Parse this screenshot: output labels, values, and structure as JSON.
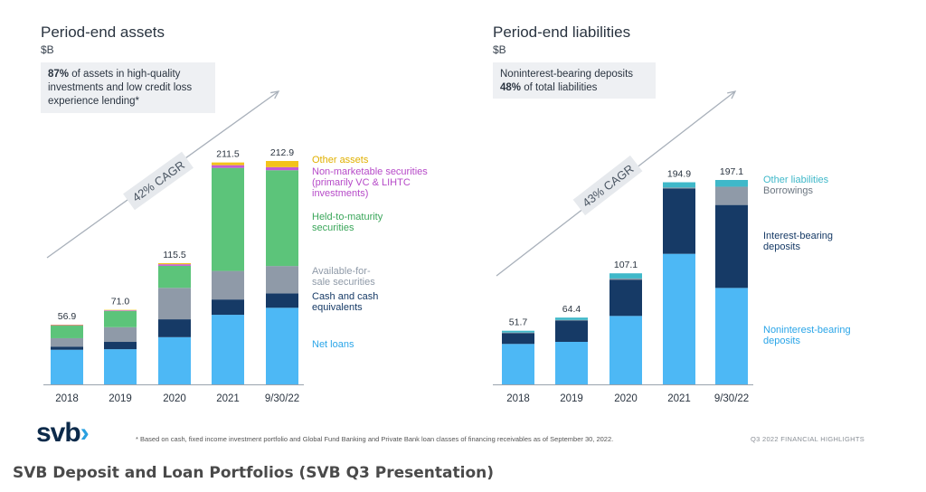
{
  "left": {
    "title": "Period-end assets",
    "unit": "$B",
    "callout_bold": "87%",
    "callout_text": " of assets in high-quality investments and low credit loss experience lending*",
    "cagr": "42% CAGR"
  },
  "right": {
    "title": "Period-end liabilities",
    "unit": "$B",
    "callout_line1": "Noninterest-bearing deposits",
    "callout_bold": "48%",
    "callout_text": " of total liabilities",
    "cagr": "43% CAGR"
  },
  "footer": {
    "logo": "svb",
    "note": "* Based on cash, fixed income investment portfolio and Global Fund Banking and Private Bank loan classes of financing receivables as of September 30, 2022.",
    "right": "Q3 2022 FINANCIAL HIGHLIGHTS"
  },
  "caption": "SVB Deposit and Loan Portfolios (SVB Q3 Presentation)",
  "colors": {
    "net_loans": "#4db8f5",
    "cash": "#163a66",
    "afs": "#8f9aa8",
    "htm": "#5cc47a",
    "nonmarketable": "#c45ad6",
    "other_assets": "#f3c31b",
    "other_liabilities": "#3fb8c9",
    "borrowings": "#8f9aa8",
    "interest_bearing": "#163a66",
    "noninterest_bearing": "#4db8f5"
  },
  "chart_data": [
    {
      "type": "bar",
      "stacked": true,
      "title": "Period-end assets",
      "ylabel": "$B",
      "categories": [
        "2018",
        "2019",
        "2020",
        "2021",
        "9/30/22"
      ],
      "totals": [
        "56.9",
        "71.0",
        "115.5",
        "211.5",
        "212.9"
      ],
      "ylim": [
        0,
        212.9
      ],
      "series": [
        {
          "name": "Net loans",
          "color": "net_loans",
          "values": [
            33.0,
            33.5,
            45.0,
            66.3,
            73.0
          ]
        },
        {
          "name": "Cash and cash equivalents",
          "color": "cash",
          "values": [
            3.0,
            7.0,
            17.0,
            14.6,
            13.7
          ]
        },
        {
          "name": "Available-for-sale securities",
          "color": "afs",
          "values": [
            8.0,
            14.0,
            30.0,
            27.2,
            26.1
          ]
        },
        {
          "name": "Held-to-maturity securities",
          "color": "htm",
          "values": [
            12.0,
            15.5,
            21.0,
            98.2,
            91.3
          ]
        },
        {
          "name": "Non-marketable securities (primarily VC & LIHTC investments)",
          "color": "nonmarketable",
          "values": [
            0.5,
            0.6,
            1.5,
            2.6,
            2.9
          ]
        },
        {
          "name": "Other assets",
          "color": "other_assets",
          "values": [
            0.4,
            0.4,
            1.0,
            2.6,
            5.9
          ]
        }
      ]
    },
    {
      "type": "bar",
      "stacked": true,
      "title": "Period-end liabilities",
      "ylabel": "$B",
      "categories": [
        "2018",
        "2019",
        "2020",
        "2021",
        "9/30/22"
      ],
      "totals": [
        "51.7",
        "64.4",
        "107.1",
        "194.9",
        "197.1"
      ],
      "ylim": [
        0,
        197.1
      ],
      "series": [
        {
          "name": "Noninterest-bearing deposits",
          "color": "noninterest_bearing",
          "values": [
            39.0,
            41.0,
            66.0,
            125.9,
            93.0
          ]
        },
        {
          "name": "Interest-bearing deposits",
          "color": "interest_bearing",
          "values": [
            10.5,
            20.5,
            35.0,
            63.0,
            80.0
          ]
        },
        {
          "name": "Borrowings",
          "color": "borrowings",
          "values": [
            0.5,
            0.6,
            1.1,
            0.9,
            17.6
          ]
        },
        {
          "name": "Other liabilities",
          "color": "other_liabilities",
          "values": [
            1.7,
            2.3,
            5.0,
            5.1,
            6.5
          ]
        }
      ]
    }
  ]
}
